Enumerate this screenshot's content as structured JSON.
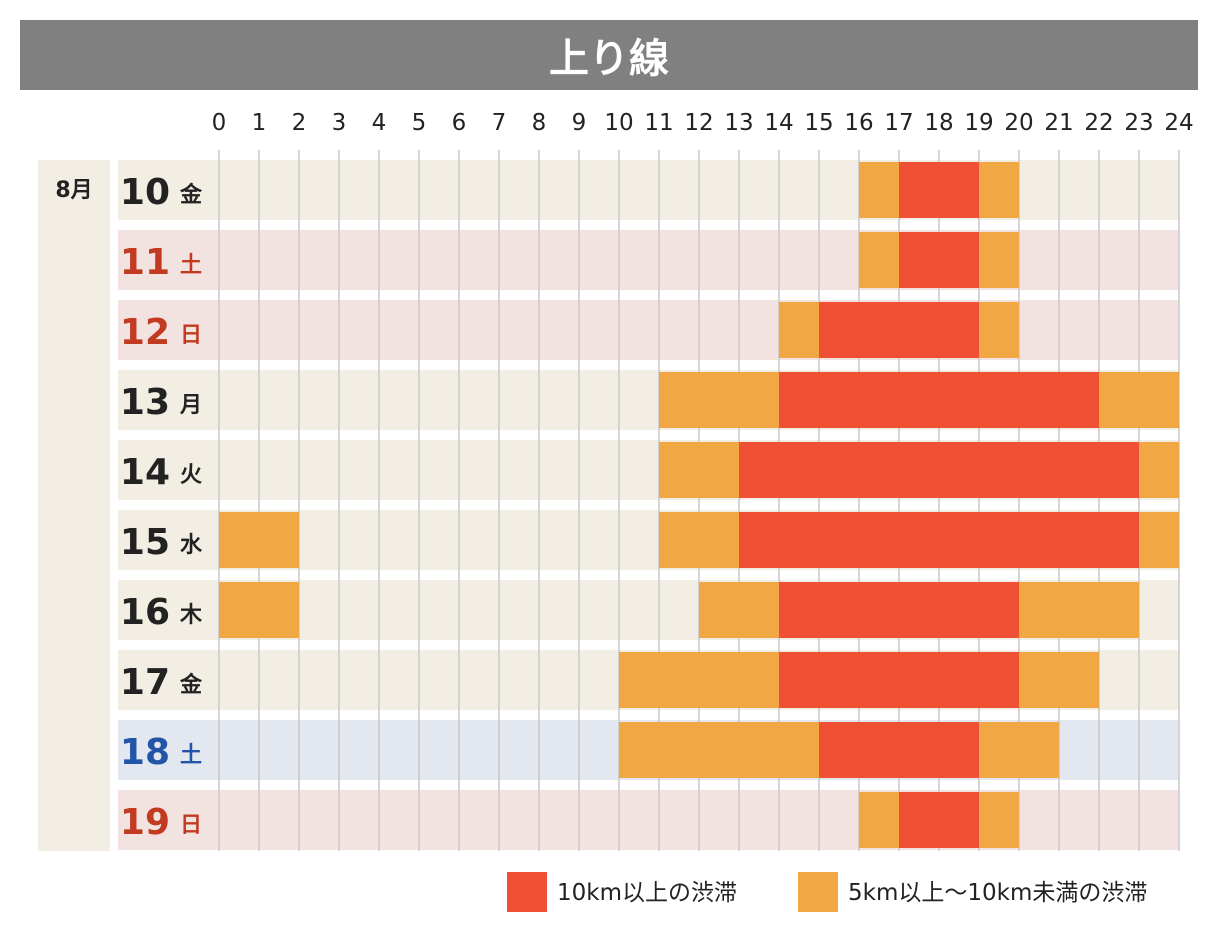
{
  "title": "上り線",
  "colors": {
    "heavy": "#ef5033",
    "light": "#f2a745",
    "header_bg": "#808080",
    "row_default": "#f2eee3",
    "row_red": "#f2e2e0",
    "row_blue": "#e3e7f0",
    "label_default": "#222222",
    "label_red": "#c23a1f",
    "label_blue": "#2255a8",
    "gridline": "#c9c9c9"
  },
  "chart_data": {
    "type": "gantt",
    "title": "上り線",
    "x_ticks": [
      "0",
      "1",
      "2",
      "3",
      "4",
      "5",
      "6",
      "7",
      "8",
      "9",
      "10",
      "11",
      "12",
      "13",
      "14",
      "15",
      "16",
      "17",
      "18",
      "19",
      "20",
      "21",
      "22",
      "23",
      "24"
    ],
    "xlim": [
      0,
      24
    ],
    "month_label": "8月",
    "legend": [
      {
        "key": "heavy",
        "label": "10km以上の渋滞"
      },
      {
        "key": "light",
        "label": "5km以上〜10km未満の渋滞"
      }
    ],
    "rows": [
      {
        "day": "10",
        "dow": "金",
        "style": "default",
        "segments": [
          {
            "start": 16,
            "end": 17,
            "level": "light"
          },
          {
            "start": 17,
            "end": 19,
            "level": "heavy"
          },
          {
            "start": 19,
            "end": 20,
            "level": "light"
          }
        ]
      },
      {
        "day": "11",
        "dow": "土",
        "style": "red",
        "segments": [
          {
            "start": 16,
            "end": 17,
            "level": "light"
          },
          {
            "start": 17,
            "end": 19,
            "level": "heavy"
          },
          {
            "start": 19,
            "end": 20,
            "level": "light"
          }
        ]
      },
      {
        "day": "12",
        "dow": "日",
        "style": "red",
        "segments": [
          {
            "start": 14,
            "end": 15,
            "level": "light"
          },
          {
            "start": 15,
            "end": 19,
            "level": "heavy"
          },
          {
            "start": 19,
            "end": 20,
            "level": "light"
          }
        ]
      },
      {
        "day": "13",
        "dow": "月",
        "style": "default",
        "segments": [
          {
            "start": 11,
            "end": 14,
            "level": "light"
          },
          {
            "start": 14,
            "end": 22,
            "level": "heavy"
          },
          {
            "start": 22,
            "end": 24,
            "level": "light"
          }
        ]
      },
      {
        "day": "14",
        "dow": "火",
        "style": "default",
        "segments": [
          {
            "start": 11,
            "end": 13,
            "level": "light"
          },
          {
            "start": 13,
            "end": 23,
            "level": "heavy"
          },
          {
            "start": 23,
            "end": 24,
            "level": "light"
          }
        ]
      },
      {
        "day": "15",
        "dow": "水",
        "style": "default",
        "segments": [
          {
            "start": 0,
            "end": 2,
            "level": "light"
          },
          {
            "start": 11,
            "end": 13,
            "level": "light"
          },
          {
            "start": 13,
            "end": 23,
            "level": "heavy"
          },
          {
            "start": 23,
            "end": 24,
            "level": "light"
          }
        ]
      },
      {
        "day": "16",
        "dow": "木",
        "style": "default",
        "segments": [
          {
            "start": 0,
            "end": 2,
            "level": "light"
          },
          {
            "start": 12,
            "end": 14,
            "level": "light"
          },
          {
            "start": 14,
            "end": 20,
            "level": "heavy"
          },
          {
            "start": 20,
            "end": 23,
            "level": "light"
          }
        ]
      },
      {
        "day": "17",
        "dow": "金",
        "style": "default",
        "segments": [
          {
            "start": 10,
            "end": 14,
            "level": "light"
          },
          {
            "start": 14,
            "end": 20,
            "level": "heavy"
          },
          {
            "start": 20,
            "end": 22,
            "level": "light"
          }
        ]
      },
      {
        "day": "18",
        "dow": "土",
        "style": "blue",
        "segments": [
          {
            "start": 10,
            "end": 15,
            "level": "light"
          },
          {
            "start": 15,
            "end": 19,
            "level": "heavy"
          },
          {
            "start": 19,
            "end": 21,
            "level": "light"
          }
        ]
      },
      {
        "day": "19",
        "dow": "日",
        "style": "red",
        "segments": [
          {
            "start": 16,
            "end": 17,
            "level": "light"
          },
          {
            "start": 17,
            "end": 19,
            "level": "heavy"
          },
          {
            "start": 19,
            "end": 20,
            "level": "light"
          }
        ]
      }
    ]
  }
}
